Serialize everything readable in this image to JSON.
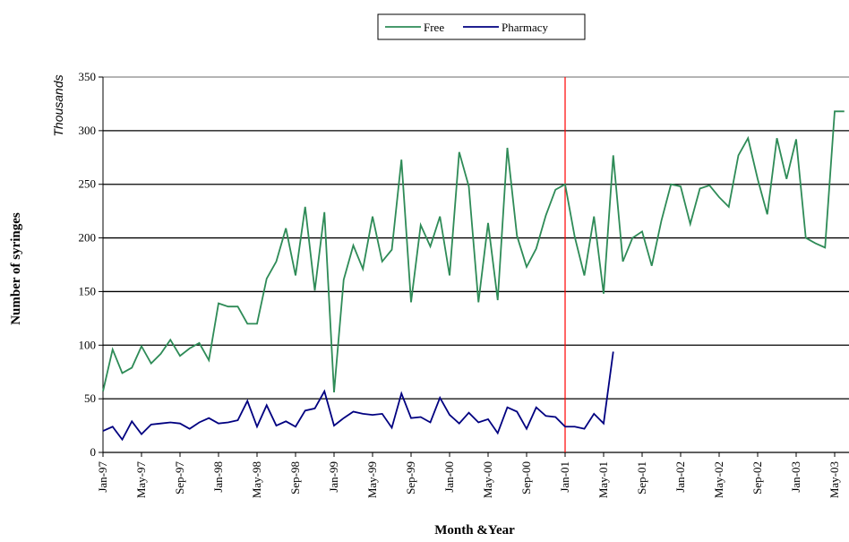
{
  "chart_data": {
    "type": "line",
    "y_label": "Number of syringes",
    "y_unit": "Thousands",
    "x_label": "Month &Year",
    "categories": [
      "Jan-97",
      null,
      null,
      null,
      "May-97",
      null,
      null,
      null,
      "Sep-97",
      null,
      null,
      null,
      "Jan-98",
      null,
      null,
      null,
      "May-98",
      null,
      null,
      null,
      "Sep-98",
      null,
      null,
      null,
      "Jan-99",
      null,
      null,
      null,
      "May-99",
      null,
      null,
      null,
      "Sep-99",
      null,
      null,
      null,
      "Jan-00",
      null,
      null,
      null,
      "May-00",
      null,
      null,
      null,
      "Sep-00",
      null,
      null,
      null,
      "Jan-01",
      null,
      null,
      null,
      "May-01",
      null,
      null,
      null,
      "Sep-01",
      null,
      null,
      null,
      "Jan-02",
      null,
      null,
      null,
      "May-02",
      null,
      null,
      null,
      "Sep-02",
      null,
      null,
      null,
      "Jan-03",
      null,
      null,
      null,
      "May-03",
      null
    ],
    "series": [
      {
        "name": "Free",
        "color": "#2e8b57",
        "values": [
          57,
          96,
          74,
          79,
          99,
          83,
          92,
          105,
          90,
          97,
          102,
          86,
          139,
          136,
          136,
          120,
          120,
          162,
          178,
          209,
          165,
          229,
          151,
          224,
          56,
          161,
          193,
          171,
          220,
          178,
          189,
          273,
          140,
          212,
          192,
          220,
          165,
          280,
          248,
          140,
          214,
          142,
          284,
          202,
          173,
          190,
          221,
          245,
          250,
          201,
          165,
          220,
          148,
          277,
          178,
          200,
          206,
          174,
          216,
          250,
          248,
          213,
          246,
          249,
          238,
          229,
          277,
          293,
          255,
          222,
          293,
          255,
          292,
          200,
          195,
          191,
          318,
          318
        ]
      },
      {
        "name": "Pharmacy",
        "color": "#000080",
        "values": [
          20,
          24,
          12,
          29,
          17,
          26,
          27,
          28,
          27,
          22,
          28,
          32,
          27,
          28,
          30,
          48,
          24,
          44,
          25,
          29,
          24,
          39,
          41,
          57,
          25,
          32,
          38,
          36,
          35,
          36,
          23,
          55,
          32,
          33,
          28,
          51,
          35,
          27,
          37,
          28,
          31,
          18,
          42,
          38,
          22,
          42,
          34,
          33,
          24,
          24,
          22,
          36,
          27,
          94,
          null,
          null,
          null,
          null,
          null,
          null,
          null,
          null,
          null,
          null,
          null,
          null,
          null,
          null,
          null,
          null,
          null,
          null,
          null,
          null,
          null,
          null,
          null,
          null
        ]
      }
    ],
    "reference_line": {
      "category": "Jan-01",
      "color": "#ff0000"
    },
    "ylim": [
      0,
      350
    ],
    "yticks": [
      0,
      50,
      100,
      150,
      200,
      250,
      300,
      350
    ],
    "grid": true,
    "legend": "top"
  }
}
